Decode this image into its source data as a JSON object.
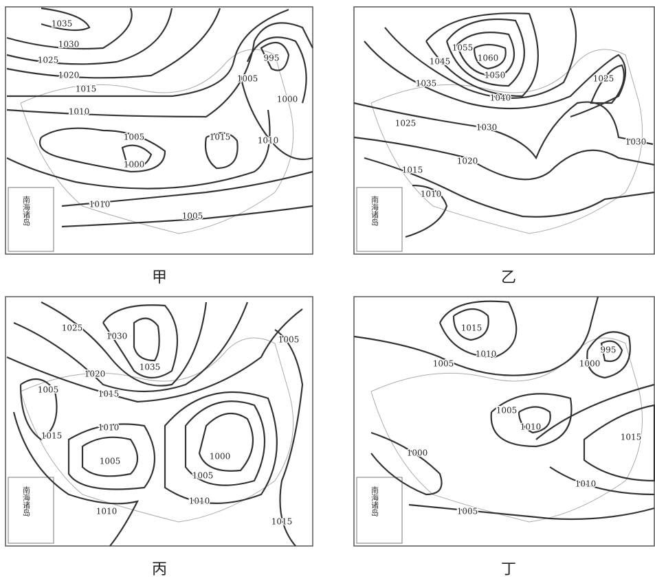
{
  "maps": [
    {
      "caption": "甲",
      "inset": "南海诸岛",
      "isobar_labels": [
        1035,
        1030,
        1025,
        1020,
        1015,
        1010,
        1005,
        1000,
        1015,
        1010,
        1005,
        1005,
        1000,
        1010,
        995
      ]
    },
    {
      "caption": "乙",
      "inset": "南海诸岛",
      "isobar_labels": [
        1060,
        1055,
        1050,
        1045,
        1040,
        1035,
        1030,
        1025,
        1020,
        1015,
        1010,
        1025,
        1030
      ]
    },
    {
      "caption": "丙",
      "inset": "南海诸岛",
      "isobar_labels": [
        1025,
        1030,
        1035,
        1020,
        1015,
        1005,
        1010,
        1015,
        1005,
        1000,
        1005,
        1010,
        1010,
        1005,
        1015
      ]
    },
    {
      "caption": "丁",
      "inset": "南海诸岛",
      "isobar_labels": [
        1015,
        1010,
        1005,
        995,
        1000,
        1005,
        1010,
        1015,
        1000,
        1010,
        1005
      ]
    }
  ]
}
